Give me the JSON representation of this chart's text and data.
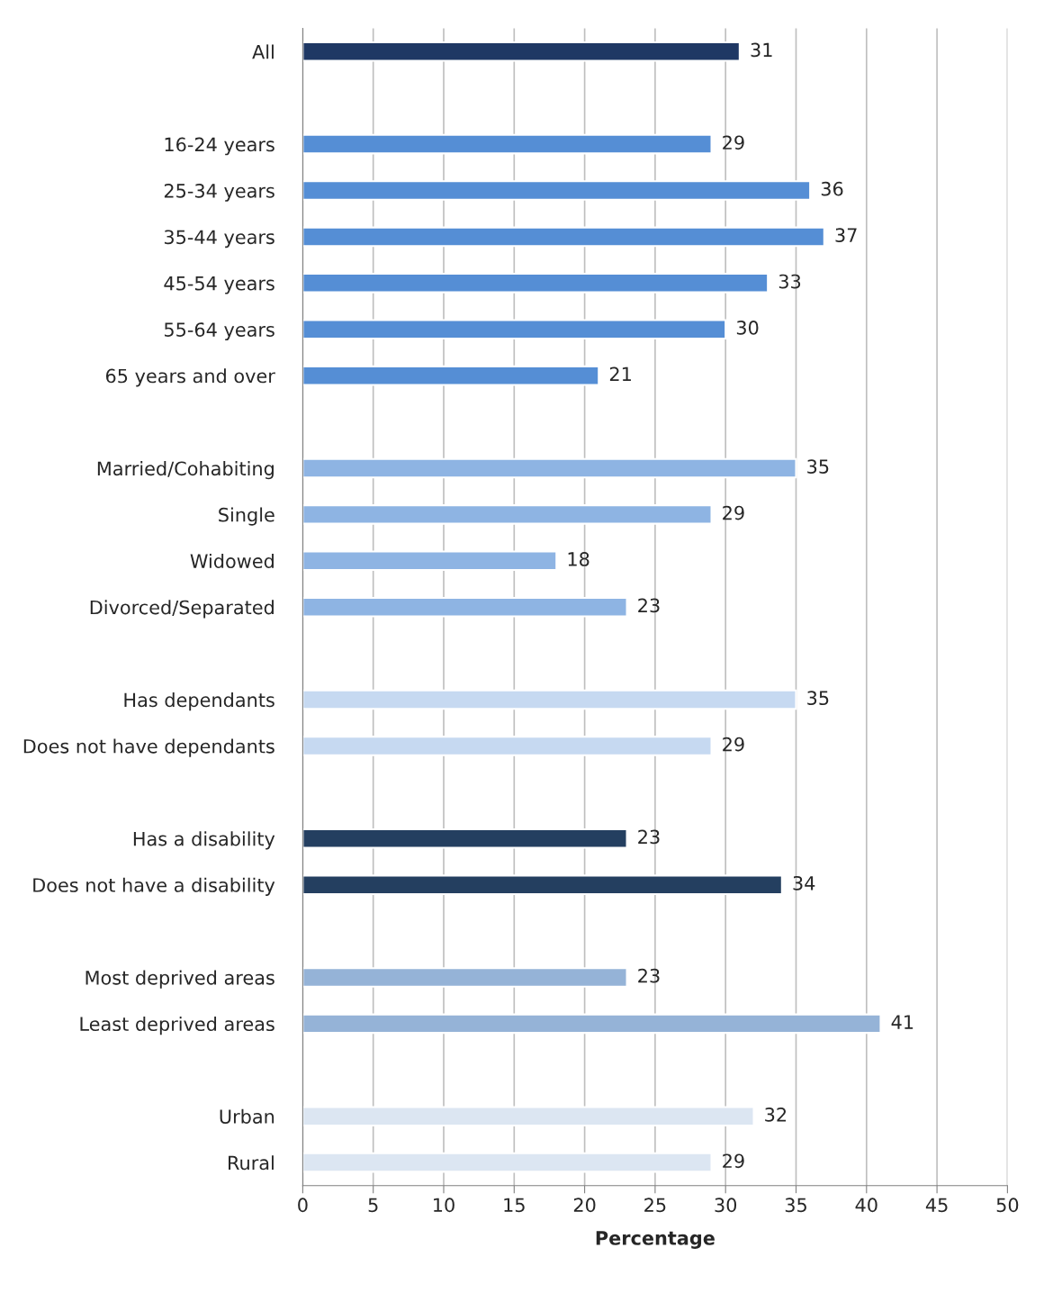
{
  "chart_data": {
    "type": "bar",
    "orientation": "horizontal",
    "categories": [
      "All",
      null,
      "16-24 years",
      "25-34 years",
      "35-44 years",
      "45-54 years",
      "55-64 years",
      "65 years and over",
      null,
      "Married/Cohabiting",
      "Single",
      "Widowed",
      "Divorced/Separated",
      null,
      "Has dependants",
      "Does not have dependants",
      null,
      "Has a disability",
      "Does not have a disability",
      null,
      "Most deprived areas",
      "Least deprived areas",
      null,
      "Urban",
      "Rural"
    ],
    "values": [
      31,
      null,
      29,
      36,
      37,
      33,
      30,
      21,
      null,
      35,
      29,
      18,
      23,
      null,
      35,
      29,
      null,
      23,
      34,
      null,
      23,
      41,
      null,
      32,
      29
    ],
    "colors": [
      "#1f3864",
      null,
      "#558ed5",
      "#558ed5",
      "#558ed5",
      "#558ed5",
      "#558ed5",
      "#558ed5",
      null,
      "#8eb4e3",
      "#8eb4e3",
      "#8eb4e3",
      "#8eb4e3",
      null,
      "#c6d9f1",
      "#c6d9f1",
      null,
      "#243f60",
      "#243f60",
      null,
      "#95b3d7",
      "#95b3d7",
      null,
      "#dce6f2",
      "#dce6f2"
    ],
    "xlabel": "Percentage",
    "xlim": [
      0,
      50
    ],
    "xticks": [
      0,
      5,
      10,
      15,
      20,
      25,
      30,
      35,
      40,
      45,
      50
    ],
    "grid": "x",
    "data_labels": true,
    "legend": false
  }
}
